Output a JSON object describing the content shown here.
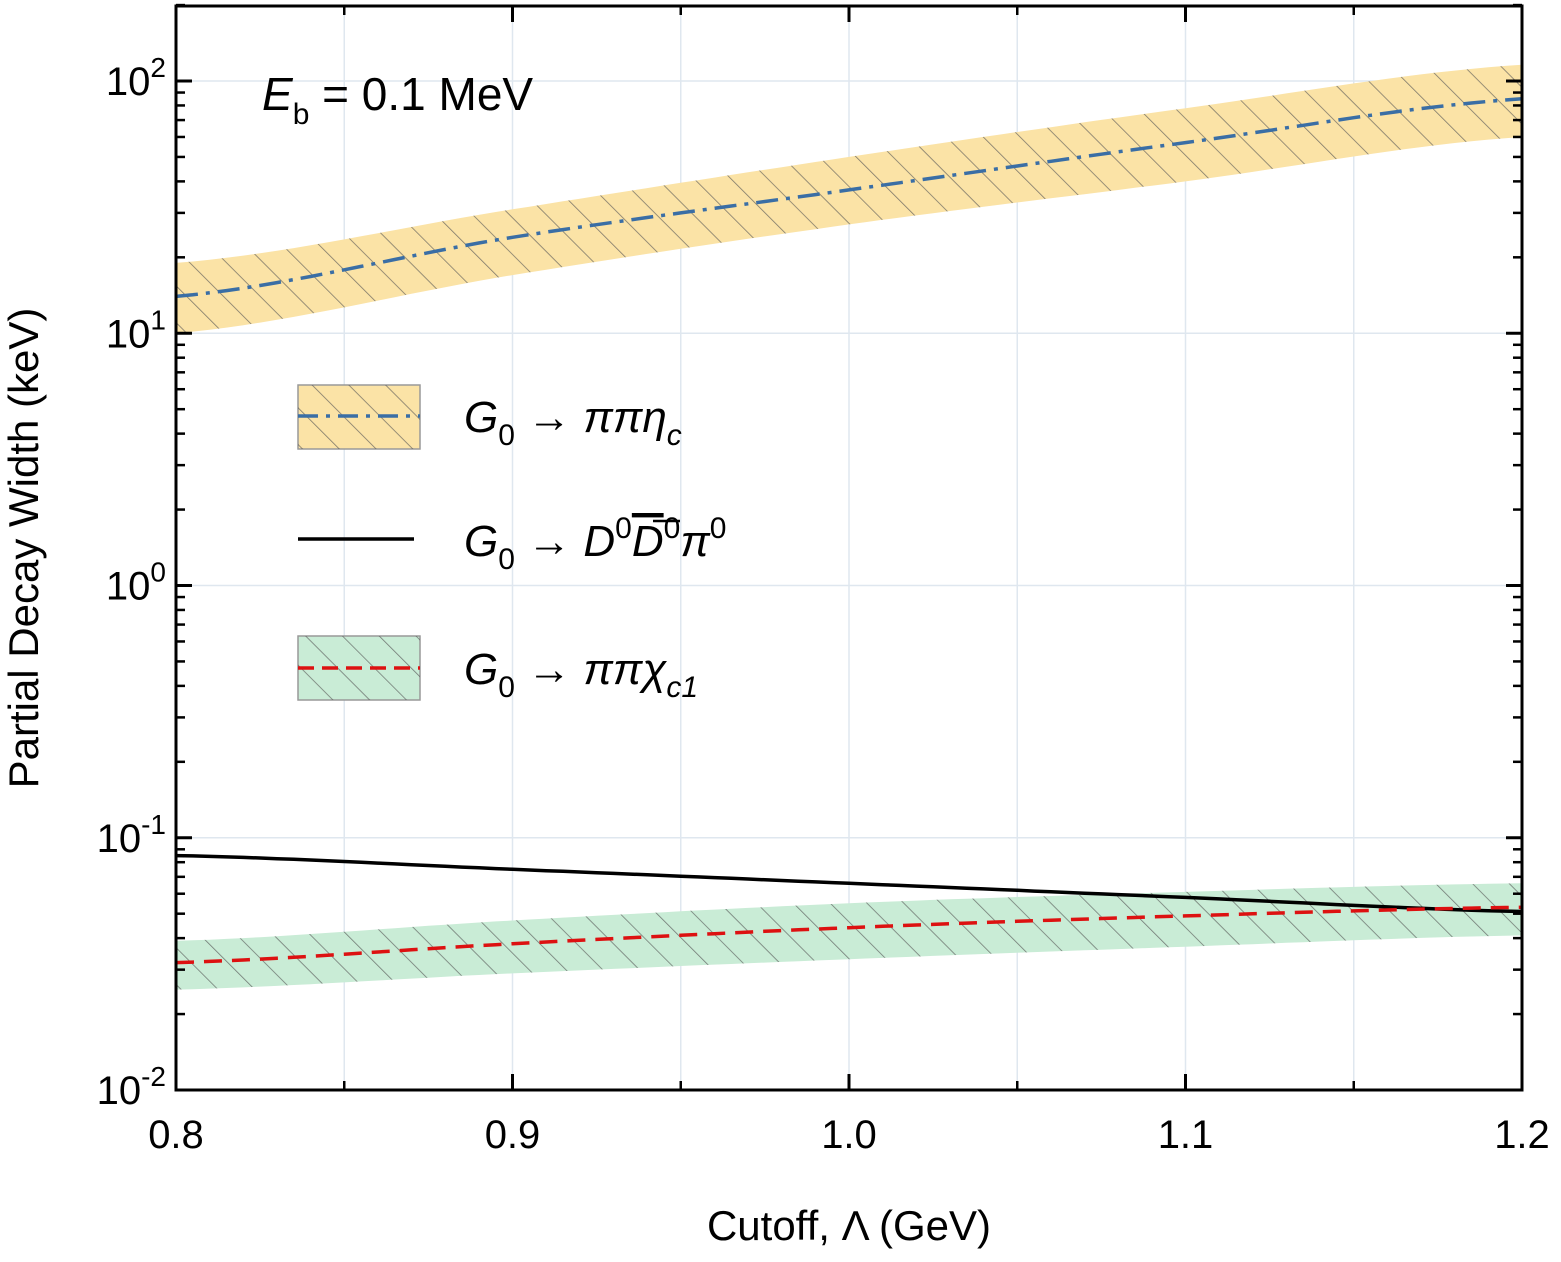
{
  "chart_data": {
    "type": "area",
    "xlabel": "Cutoff, Λ (GeV)",
    "ylabel": "Partial Decay Width (keV)",
    "xlim": [
      0.8,
      1.2
    ],
    "ylim": [
      0.01,
      200
    ],
    "yscale": "log",
    "grid": true,
    "legend_position": "left",
    "x_ticks": [
      "0.8",
      "0.9",
      "1.0",
      "1.1",
      "1.2"
    ],
    "y_ticks": [
      {
        "base": "10",
        "exp": "-2",
        "value": 0.01
      },
      {
        "base": "10",
        "exp": "-1",
        "value": 0.1
      },
      {
        "base": "10",
        "exp": "0",
        "value": 1
      },
      {
        "base": "10",
        "exp": "1",
        "value": 10
      },
      {
        "base": "10",
        "exp": "2",
        "value": 100
      }
    ],
    "annotation": {
      "symbol": "E",
      "subscript": "b",
      "text": " = 0.1 MeV"
    },
    "x": [
      0.8,
      0.9,
      1.0,
      1.1,
      1.2
    ],
    "series": [
      {
        "name": "G0 → ππηc",
        "legend": {
          "g": "G",
          "g_sub": "0",
          "arrow": " → ",
          "body": "ππη",
          "body_sub": "c"
        },
        "line_color": "#3a6ea5",
        "band_color": "#fbe3a6",
        "hatch_color": "#555555",
        "line_style": "dash-dot",
        "center": [
          14,
          24,
          37,
          57,
          85
        ],
        "lower": [
          10,
          17,
          27,
          40,
          60
        ],
        "upper": [
          19,
          31,
          50,
          78,
          116
        ]
      },
      {
        "name": "G0 → D0D̄0π0",
        "legend": {
          "g": "G",
          "g_sub": "0",
          "arrow": " → ",
          "d1": "D",
          "d1_sup": "0",
          "d2": "D",
          "d2_sup": "0",
          "pi": "π",
          "pi_sup": "0"
        },
        "line_color": "#000000",
        "line_style": "solid",
        "center": [
          0.085,
          0.075,
          0.066,
          0.058,
          0.051
        ]
      },
      {
        "name": "G0 → ππχc1",
        "legend": {
          "g": "G",
          "g_sub": "0",
          "arrow": " → ",
          "body": "ππχ",
          "body_sub": "c1"
        },
        "line_color": "#dd1111",
        "band_color": "#c9ecd6",
        "hatch_color": "#555555",
        "line_style": "dash",
        "center": [
          0.032,
          0.038,
          0.044,
          0.049,
          0.053
        ],
        "lower": [
          0.025,
          0.029,
          0.033,
          0.037,
          0.041
        ],
        "upper": [
          0.039,
          0.047,
          0.055,
          0.061,
          0.066
        ]
      }
    ]
  }
}
